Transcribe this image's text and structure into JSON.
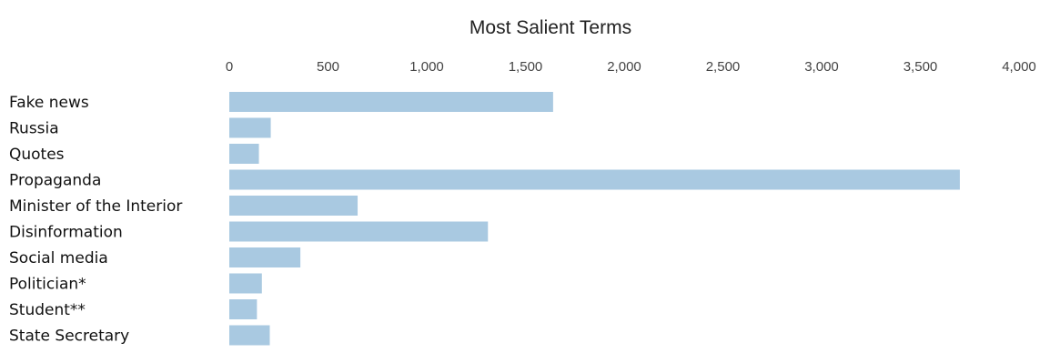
{
  "chart_data": {
    "type": "bar",
    "orientation": "horizontal",
    "title": "Most Salient Terms",
    "xlabel": "",
    "ylabel": "",
    "xlim": [
      0,
      4000
    ],
    "xtick_labels": [
      "0",
      "500",
      "1,000",
      "1,500",
      "2,000",
      "2,500",
      "3,000",
      "3,500",
      "4,000"
    ],
    "xtick_values": [
      0,
      500,
      1000,
      1500,
      2000,
      2500,
      3000,
      3500,
      4000
    ],
    "axis_position": "top",
    "grid": false,
    "legend": false,
    "bar_color": "#a9c9e1",
    "categories": [
      "Fake news",
      "Russia",
      "Quotes",
      "Propaganda",
      "Minister of the Interior",
      "Disinformation",
      "Social media",
      "Politician*",
      "Student**",
      "State Secretary"
    ],
    "values": [
      1640,
      210,
      150,
      3700,
      650,
      1310,
      360,
      165,
      140,
      205
    ]
  }
}
